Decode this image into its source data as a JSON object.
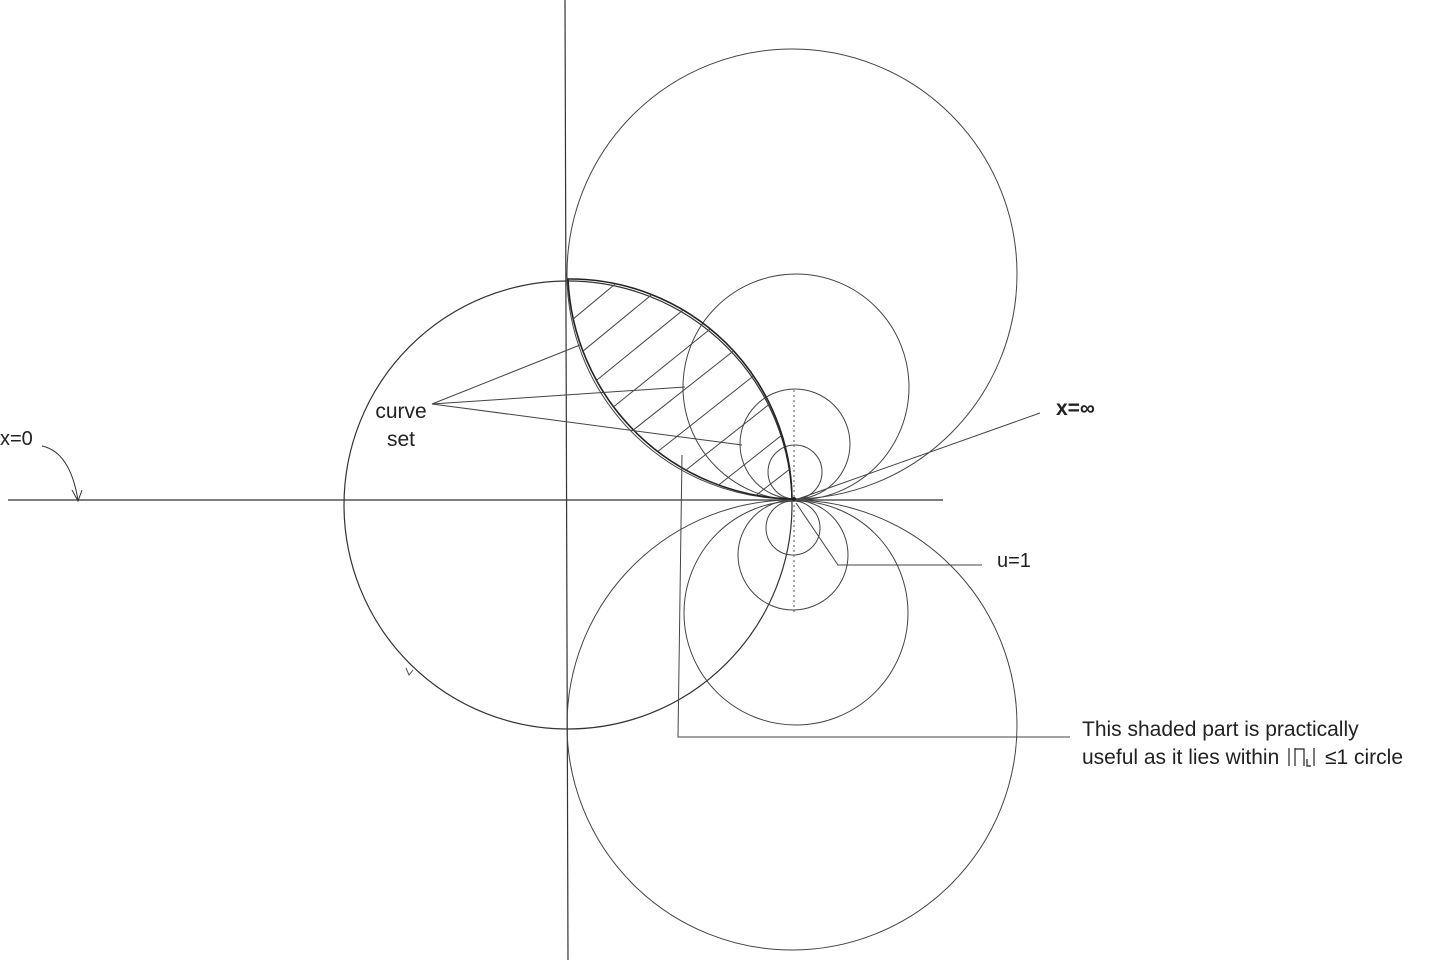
{
  "labels": {
    "x_zero": "x=0",
    "curve_set_line1": "curve",
    "curve_set_line2": "set",
    "x_infinity": "x=∞",
    "u_one": "u=1",
    "shaded_note_line1": "This shaded part is practically",
    "shaded_note_line2_prefix": "useful as it lies within",
    "shaded_note_line2_suffix": "≤1 circle"
  },
  "colors": {
    "line": "#333333",
    "thin_line": "#555555",
    "text": "#222222",
    "background": "#ffffff"
  }
}
